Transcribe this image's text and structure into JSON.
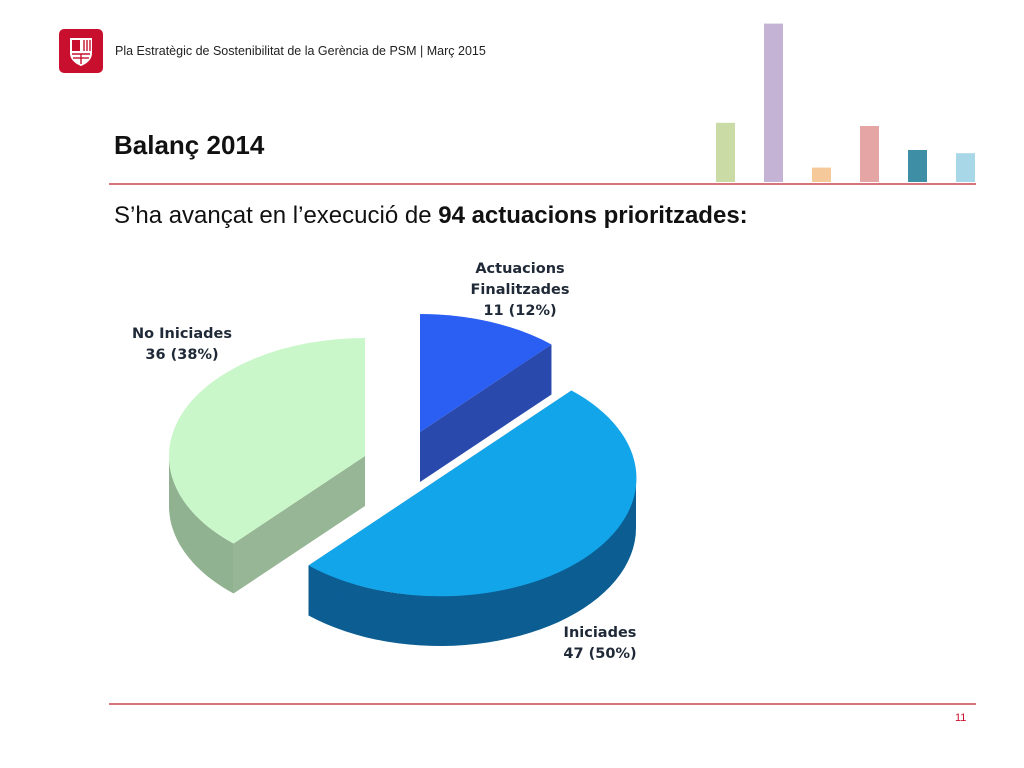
{
  "header": {
    "logo_name": "ajuntament-barcelona-logo",
    "text": "Pla Estratègic de Sostenibilitat de la Gerència de PSM | Març 2015"
  },
  "title": "Balanç 2014",
  "subtitle": {
    "prefix": "S’ha avançat en l’execució de ",
    "bold": "94 actuacions prioritzades:"
  },
  "decor_bars": [
    {
      "level": 0.37,
      "color": "#cbdba6"
    },
    {
      "level": 0.99,
      "color": "#c4b3d4"
    },
    {
      "level": 0.09,
      "color": "#f6c99a"
    },
    {
      "level": 0.35,
      "color": "#e5a5a5"
    },
    {
      "level": 0.2,
      "color": "#3e8fa6"
    },
    {
      "level": 0.18,
      "color": "#a8d7e8"
    }
  ],
  "chart_data": {
    "type": "pie",
    "title": "",
    "total": 94,
    "slices": [
      {
        "label": "Actuacions Finalitzades",
        "label_lines": [
          "Actuacions",
          "Finalitzades",
          "11 (12%)"
        ],
        "value": 11,
        "percent": 12,
        "color": "#2b5ef2",
        "side_color": "#1e3fa8",
        "exploded": true
      },
      {
        "label": "Iniciades",
        "label_lines": [
          "Iniciades",
          "47 (50%)"
        ],
        "value": 47,
        "percent": 50,
        "color": "#12a5ea",
        "side_color": "#0c5d92",
        "exploded": true
      },
      {
        "label": "No Iniciades",
        "label_lines": [
          "No Iniciades",
          "36 (38%)"
        ],
        "value": 36,
        "percent": 38,
        "color": "#c9f7c9",
        "side_color": "#90b290",
        "exploded": true
      }
    ],
    "three_d": true
  },
  "page_number": "11",
  "colors": {
    "accent_rule": "#d8737d",
    "logo_red": "#c8102e"
  }
}
